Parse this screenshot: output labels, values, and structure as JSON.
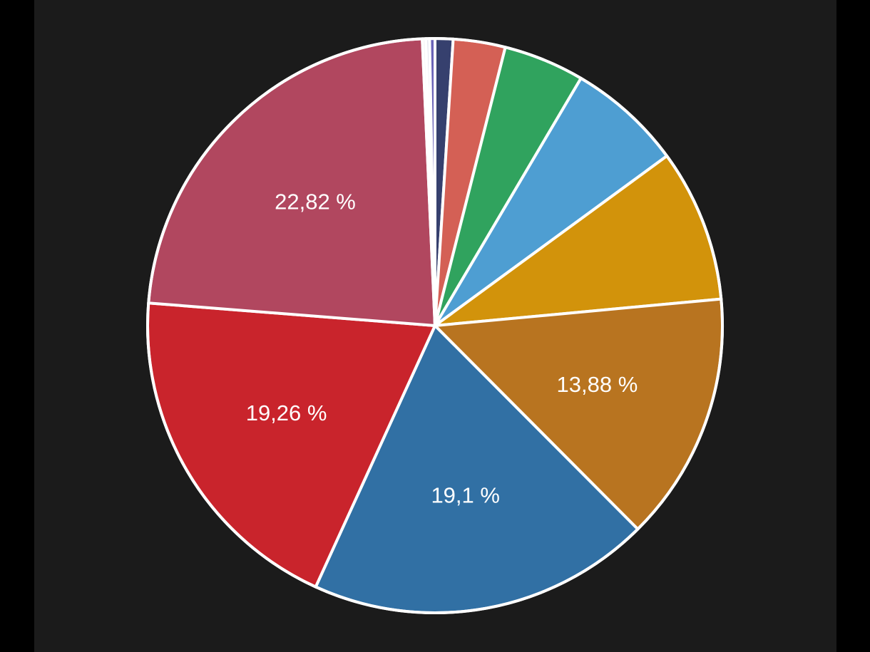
{
  "chart_data": {
    "type": "pie",
    "start_angle_deg": 0,
    "direction": "clockwise",
    "slices": [
      {
        "value": 1.0,
        "label": "",
        "color": "#36406e"
      },
      {
        "value": 2.9,
        "label": "",
        "color": "#d46055"
      },
      {
        "value": 4.5,
        "label": "",
        "color": "#30a35e"
      },
      {
        "value": 6.4,
        "label": "",
        "color": "#4e9ed2"
      },
      {
        "value": 8.5,
        "label": "",
        "color": "#d2930b"
      },
      {
        "value": 13.88,
        "label": "13,88 %",
        "color": "#b87420"
      },
      {
        "value": 19.1,
        "label": "19,1 %",
        "color": "#3170a4"
      },
      {
        "value": 19.26,
        "label": "19,26 %",
        "color": "#c9242c"
      },
      {
        "value": 22.82,
        "label": "22,82 %",
        "color": "#b1475f"
      },
      {
        "value": 0.2,
        "label": "",
        "color": "#f2f2f2"
      },
      {
        "value": 0.2,
        "label": "",
        "color": "#d9dce8"
      },
      {
        "value": 0.3,
        "label": "",
        "color": "#6a63b8"
      }
    ],
    "legend": "none"
  }
}
